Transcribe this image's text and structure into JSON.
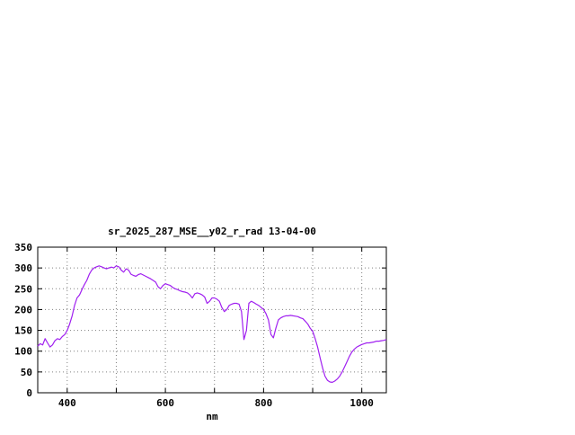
{
  "page": {
    "background": "#ffffff"
  },
  "chart_data": {
    "type": "line",
    "title": "sr_2025_287_MSE__y02_r_rad 13-04-00",
    "xlabel": "nm",
    "ylabel": "",
    "xlim": [
      340,
      1050
    ],
    "ylim": [
      0,
      350
    ],
    "x_tick_labels": [
      400,
      600,
      800,
      1000
    ],
    "x_grid_step": 100,
    "y_tick_step": 50,
    "y_tick_labels": [
      0,
      50,
      100,
      150,
      200,
      250,
      300,
      350
    ],
    "grid": true,
    "legend": "none",
    "line_color": "#a020f0",
    "axis_color": "#000000",
    "grid_color": "#808080",
    "series": [
      {
        "name": "sr_2025_287_MSE__y02_r_rad",
        "points": [
          [
            340,
            112
          ],
          [
            345,
            118
          ],
          [
            350,
            115
          ],
          [
            355,
            130
          ],
          [
            360,
            120
          ],
          [
            365,
            110
          ],
          [
            370,
            115
          ],
          [
            375,
            125
          ],
          [
            380,
            130
          ],
          [
            385,
            128
          ],
          [
            390,
            135
          ],
          [
            395,
            140
          ],
          [
            400,
            150
          ],
          [
            405,
            165
          ],
          [
            410,
            185
          ],
          [
            415,
            210
          ],
          [
            420,
            228
          ],
          [
            425,
            235
          ],
          [
            430,
            248
          ],
          [
            435,
            260
          ],
          [
            440,
            270
          ],
          [
            445,
            285
          ],
          [
            450,
            295
          ],
          [
            455,
            300
          ],
          [
            460,
            303
          ],
          [
            465,
            305
          ],
          [
            470,
            303
          ],
          [
            475,
            300
          ],
          [
            480,
            298
          ],
          [
            485,
            300
          ],
          [
            490,
            302
          ],
          [
            495,
            300
          ],
          [
            500,
            305
          ],
          [
            505,
            303
          ],
          [
            510,
            295
          ],
          [
            515,
            290
          ],
          [
            520,
            298
          ],
          [
            525,
            295
          ],
          [
            530,
            285
          ],
          [
            535,
            282
          ],
          [
            540,
            280
          ],
          [
            545,
            284
          ],
          [
            550,
            286
          ],
          [
            555,
            283
          ],
          [
            560,
            280
          ],
          [
            565,
            277
          ],
          [
            570,
            274
          ],
          [
            575,
            270
          ],
          [
            580,
            266
          ],
          [
            585,
            255
          ],
          [
            590,
            250
          ],
          [
            595,
            258
          ],
          [
            600,
            262
          ],
          [
            605,
            260
          ],
          [
            610,
            258
          ],
          [
            615,
            253
          ],
          [
            620,
            250
          ],
          [
            625,
            248
          ],
          [
            630,
            245
          ],
          [
            635,
            243
          ],
          [
            640,
            242
          ],
          [
            645,
            240
          ],
          [
            650,
            235
          ],
          [
            655,
            228
          ],
          [
            660,
            238
          ],
          [
            665,
            240
          ],
          [
            670,
            238
          ],
          [
            675,
            235
          ],
          [
            680,
            230
          ],
          [
            685,
            215
          ],
          [
            690,
            220
          ],
          [
            695,
            228
          ],
          [
            700,
            228
          ],
          [
            705,
            225
          ],
          [
            710,
            220
          ],
          [
            715,
            205
          ],
          [
            720,
            195
          ],
          [
            725,
            200
          ],
          [
            730,
            210
          ],
          [
            735,
            213
          ],
          [
            740,
            215
          ],
          [
            745,
            215
          ],
          [
            750,
            213
          ],
          [
            755,
            195
          ],
          [
            760,
            128
          ],
          [
            765,
            150
          ],
          [
            770,
            215
          ],
          [
            775,
            220
          ],
          [
            780,
            217
          ],
          [
            785,
            213
          ],
          [
            790,
            210
          ],
          [
            795,
            205
          ],
          [
            800,
            200
          ],
          [
            805,
            190
          ],
          [
            810,
            175
          ],
          [
            815,
            140
          ],
          [
            820,
            132
          ],
          [
            825,
            155
          ],
          [
            830,
            175
          ],
          [
            835,
            180
          ],
          [
            840,
            183
          ],
          [
            845,
            185
          ],
          [
            850,
            185
          ],
          [
            855,
            186
          ],
          [
            860,
            185
          ],
          [
            865,
            184
          ],
          [
            870,
            183
          ],
          [
            875,
            180
          ],
          [
            880,
            178
          ],
          [
            885,
            172
          ],
          [
            890,
            165
          ],
          [
            895,
            155
          ],
          [
            900,
            148
          ],
          [
            905,
            130
          ],
          [
            910,
            110
          ],
          [
            915,
            85
          ],
          [
            920,
            60
          ],
          [
            925,
            40
          ],
          [
            930,
            30
          ],
          [
            935,
            26
          ],
          [
            940,
            25
          ],
          [
            945,
            28
          ],
          [
            950,
            33
          ],
          [
            955,
            40
          ],
          [
            960,
            50
          ],
          [
            965,
            62
          ],
          [
            970,
            75
          ],
          [
            975,
            88
          ],
          [
            980,
            98
          ],
          [
            985,
            105
          ],
          [
            990,
            110
          ],
          [
            995,
            113
          ],
          [
            1000,
            116
          ],
          [
            1005,
            118
          ],
          [
            1010,
            120
          ],
          [
            1015,
            120
          ],
          [
            1020,
            121
          ],
          [
            1025,
            122
          ],
          [
            1030,
            124
          ],
          [
            1035,
            124
          ],
          [
            1040,
            125
          ],
          [
            1045,
            126
          ],
          [
            1050,
            128
          ]
        ]
      }
    ]
  }
}
